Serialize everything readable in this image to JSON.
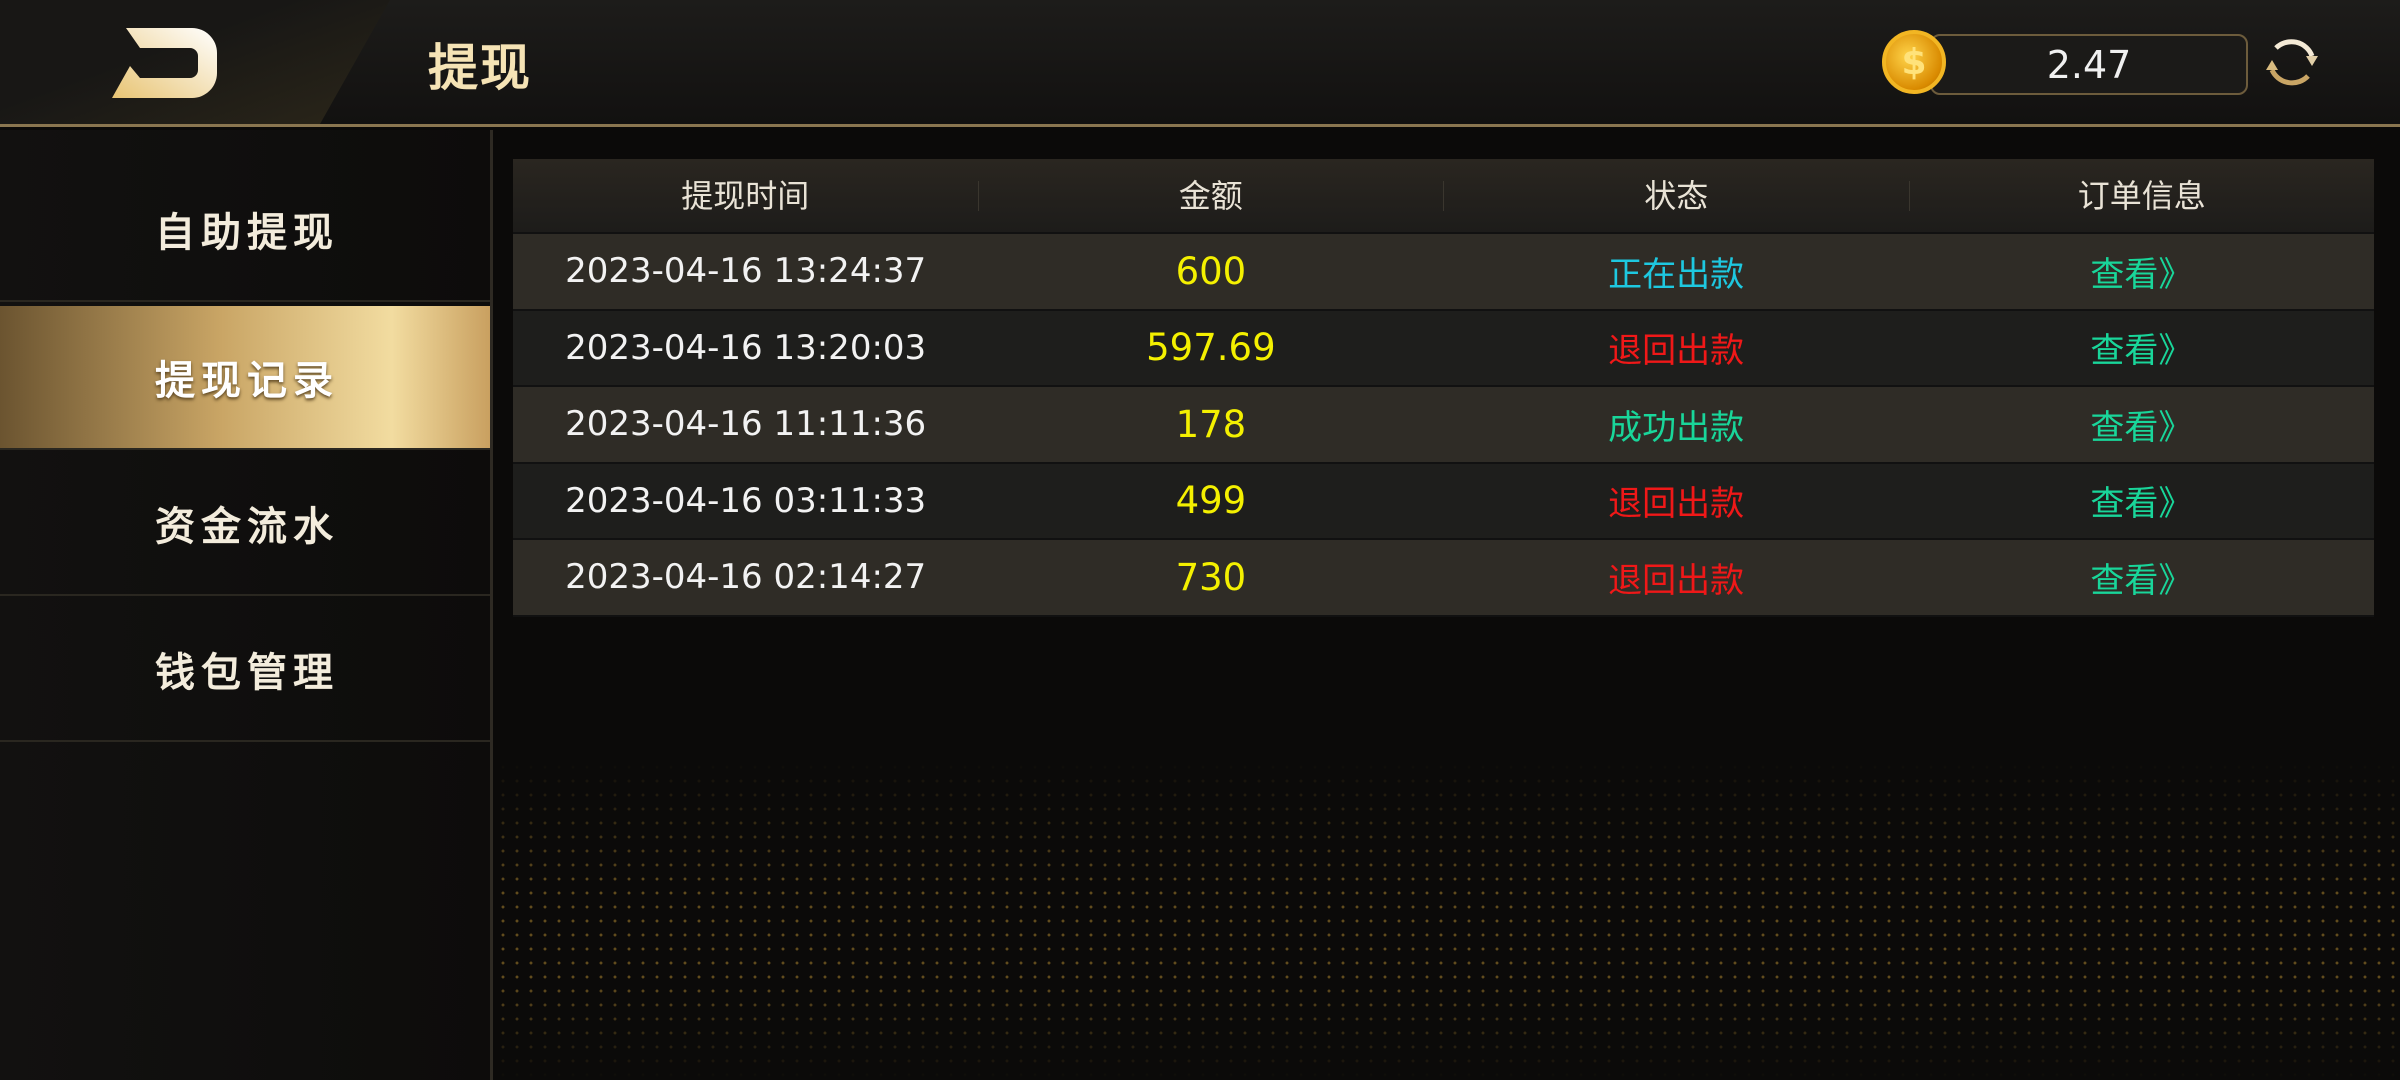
{
  "header": {
    "title": "提现",
    "back_icon": "back-d-icon",
    "balance": "2.47",
    "coin_icon": "dollar-coin-icon",
    "refresh_icon": "refresh-icon"
  },
  "sidebar": {
    "items": [
      {
        "label": "自助提现",
        "active": false
      },
      {
        "label": "提现记录",
        "active": true
      },
      {
        "label": "资金流水",
        "active": false
      },
      {
        "label": "钱包管理",
        "active": false
      }
    ]
  },
  "table": {
    "columns": [
      "提现时间",
      "金额",
      "状态",
      "订单信息"
    ],
    "rows": [
      {
        "time": "2023-04-16 13:24:37",
        "amount": "600",
        "status": "正在出款",
        "status_color": "#1ec8e0",
        "action": "查看》"
      },
      {
        "time": "2023-04-16 13:20:03",
        "amount": "597.69",
        "status": "退回出款",
        "status_color": "#f01818",
        "action": "查看》"
      },
      {
        "time": "2023-04-16 11:11:36",
        "amount": "178",
        "status": "成功出款",
        "status_color": "#19d69a",
        "action": "查看》"
      },
      {
        "time": "2023-04-16 03:11:33",
        "amount": "499",
        "status": "退回出款",
        "status_color": "#f01818",
        "action": "查看》"
      },
      {
        "time": "2023-04-16 02:14:27",
        "amount": "730",
        "status": "退回出款",
        "status_color": "#f01818",
        "action": "查看》"
      }
    ]
  },
  "colors": {
    "accent": "#c9a565",
    "amount": "#f4f000",
    "link": "#19d69a"
  }
}
